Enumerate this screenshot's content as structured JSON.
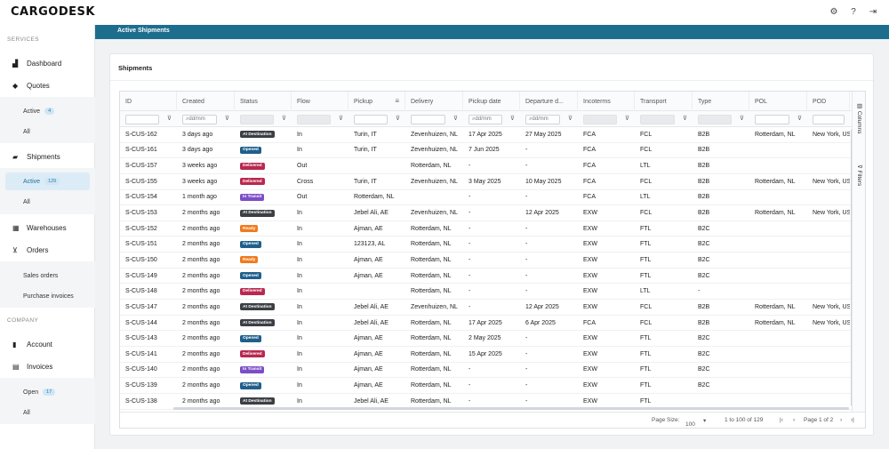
{
  "app": {
    "logo": "CARGODESK"
  },
  "topbar": {
    "icons": [
      "gear-icon",
      "help-icon",
      "logout-icon"
    ],
    "glyphs": [
      "⚙",
      "?",
      "⇥"
    ]
  },
  "sidebar": {
    "services_label": "SERVICES",
    "company_label": "COMPANY",
    "dashboard": "Dashboard",
    "quotes": "Quotes",
    "quotes_active": "Active",
    "quotes_active_count": "4",
    "quotes_all": "All",
    "shipments": "Shipments",
    "shipments_active": "Active",
    "shipments_active_count": "129",
    "shipments_all": "All",
    "warehouses": "Warehouses",
    "orders": "Orders",
    "sales_orders": "Sales orders",
    "purchase_invoices": "Purchase invoices",
    "account": "Account",
    "invoices": "Invoices",
    "invoices_open": "Open",
    "invoices_open_count": "17",
    "invoices_all": "All"
  },
  "header": {
    "title": "Active Shipments"
  },
  "card": {
    "title": "Shipments"
  },
  "grid": {
    "columns": [
      "ID",
      "Created",
      "Status",
      "Flow",
      "Pickup",
      "Delivery",
      "Pickup date",
      "Departure d...",
      "Incoterms",
      "Transport",
      "Type",
      "POL",
      "POD"
    ],
    "date_placeholder": "dd/mm",
    "side_tabs": {
      "columns": "Columns",
      "filters": "Filters"
    },
    "rows": [
      [
        "S-CUS-162",
        "3 days ago",
        "At Destination",
        "In",
        "Turin, IT",
        "Zevenhuizen, NL",
        "17 Apr 2025",
        "27 May 2025",
        "FCA",
        "FCL",
        "B2B",
        "Rotterdam, NL",
        "New York, US"
      ],
      [
        "S-CUS-161",
        "3 days ago",
        "Opened",
        "In",
        "Turin, IT",
        "Zevenhuizen, NL",
        "7 Jun 2025",
        "-",
        "FCA",
        "FCL",
        "B2B",
        "",
        ""
      ],
      [
        "S-CUS-157",
        "3 weeks ago",
        "Delivered",
        "Out",
        "",
        "Rotterdam, NL",
        "-",
        "-",
        "FCA",
        "LTL",
        "B2B",
        "",
        ""
      ],
      [
        "S-CUS-155",
        "3 weeks ago",
        "Delivered",
        "Cross",
        "Turin, IT",
        "Zevenhuizen, NL",
        "3 May 2025",
        "10 May 2025",
        "FCA",
        "FCL",
        "B2B",
        "Rotterdam, NL",
        "New York, US"
      ],
      [
        "S-CUS-154",
        "1 month ago",
        "In Transit",
        "Out",
        "Rotterdam, NL",
        "",
        "-",
        "-",
        "FCA",
        "LTL",
        "B2B",
        "",
        ""
      ],
      [
        "S-CUS-153",
        "2 months ago",
        "At Destination",
        "In",
        "Jebel Ali, AE",
        "Zevenhuizen, NL",
        "-",
        "12 Apr 2025",
        "EXW",
        "FCL",
        "B2B",
        "Rotterdam, NL",
        "New York, US"
      ],
      [
        "S-CUS-152",
        "2 months ago",
        "Ready",
        "In",
        "Ajman, AE",
        "Rotterdam, NL",
        "-",
        "-",
        "EXW",
        "FTL",
        "B2C",
        "",
        ""
      ],
      [
        "S-CUS-151",
        "2 months ago",
        "Opened",
        "In",
        "123123, AL",
        "Rotterdam, NL",
        "-",
        "-",
        "EXW",
        "FTL",
        "B2C",
        "",
        ""
      ],
      [
        "S-CUS-150",
        "2 months ago",
        "Ready",
        "In",
        "Ajman, AE",
        "Rotterdam, NL",
        "-",
        "-",
        "EXW",
        "FTL",
        "B2C",
        "",
        ""
      ],
      [
        "S-CUS-149",
        "2 months ago",
        "Opened",
        "In",
        "Ajman, AE",
        "Rotterdam, NL",
        "-",
        "-",
        "EXW",
        "FTL",
        "B2C",
        "",
        ""
      ],
      [
        "S-CUS-148",
        "2 months ago",
        "Delivered",
        "In",
        "",
        "Rotterdam, NL",
        "-",
        "-",
        "EXW",
        "LTL",
        "-",
        "",
        ""
      ],
      [
        "S-CUS-147",
        "2 months ago",
        "At Destination",
        "In",
        "Jebel Ali, AE",
        "Zevenhuizen, NL",
        "-",
        "12 Apr 2025",
        "EXW",
        "FCL",
        "B2B",
        "Rotterdam, NL",
        "New York, US"
      ],
      [
        "S-CUS-144",
        "2 months ago",
        "At Destination",
        "In",
        "Jebel Ali, AE",
        "Rotterdam, NL",
        "17 Apr 2025",
        "6 Apr 2025",
        "FCA",
        "FCL",
        "B2B",
        "Rotterdam, NL",
        "New York, US"
      ],
      [
        "S-CUS-143",
        "2 months ago",
        "Opened",
        "In",
        "Ajman, AE",
        "Rotterdam, NL",
        "2 May 2025",
        "-",
        "EXW",
        "FTL",
        "B2C",
        "",
        ""
      ],
      [
        "S-CUS-141",
        "2 months ago",
        "Delivered",
        "In",
        "Ajman, AE",
        "Rotterdam, NL",
        "15 Apr 2025",
        "-",
        "EXW",
        "FTL",
        "B2C",
        "",
        ""
      ],
      [
        "S-CUS-140",
        "2 months ago",
        "In Transit",
        "In",
        "Ajman, AE",
        "Rotterdam, NL",
        "-",
        "-",
        "EXW",
        "FTL",
        "B2C",
        "",
        ""
      ],
      [
        "S-CUS-139",
        "2 months ago",
        "Opened",
        "In",
        "Ajman, AE",
        "Rotterdam, NL",
        "-",
        "-",
        "EXW",
        "FTL",
        "B2C",
        "",
        ""
      ],
      [
        "S-CUS-138",
        "2 months ago",
        "At Destination",
        "In",
        "Jebel Ali, AE",
        "Rotterdam, NL",
        "-",
        "-",
        "EXW",
        "FTL",
        "",
        "",
        ""
      ]
    ]
  },
  "pagination": {
    "page_size_label": "Page Size:",
    "page_size": "100",
    "range": "1 to 100 of 129",
    "page_label": "Page 1 of 2"
  }
}
